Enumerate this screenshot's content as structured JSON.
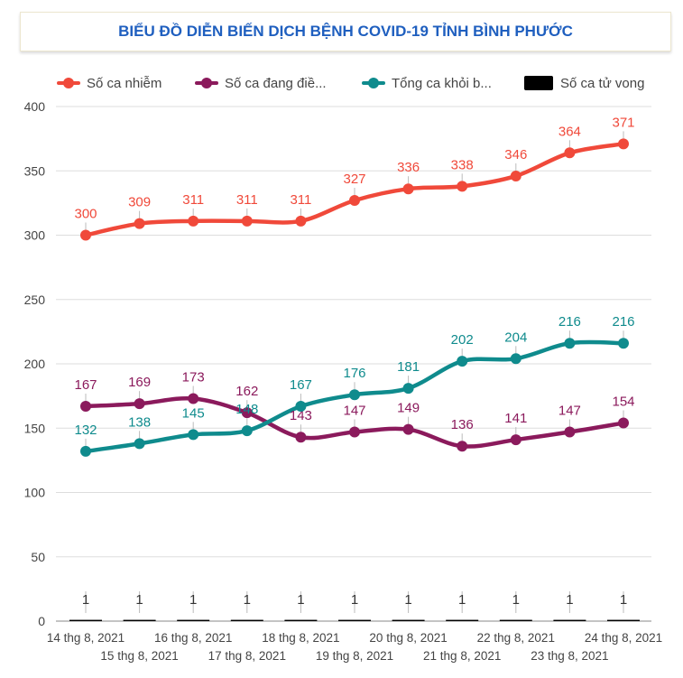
{
  "chart_data": {
    "type": "line",
    "title": "BIỂU ĐỒ DIỄN BIẾN DỊCH BỆNH COVID-19 TỈNH BÌNH PHƯỚC",
    "xlabel": "",
    "ylabel": "",
    "ylim": [
      0,
      400
    ],
    "yticks": [
      "0",
      "50",
      "100",
      "150",
      "200",
      "250",
      "300",
      "350",
      "400"
    ],
    "categories": [
      "14 thg 8, 2021",
      "15 thg 8, 2021",
      "16 thg 8, 2021",
      "17 thg 8, 2021",
      "18 thg 8, 2021",
      "19 thg 8, 2021",
      "20 thg 8, 2021",
      "21 thg 8, 2021",
      "22 thg 8, 2021",
      "23 thg 8, 2021",
      "24 thg 8, 2021"
    ],
    "series": [
      {
        "name": "Số ca nhiễm",
        "legend_label": "Số ca nhiễm",
        "color": "#f0493a",
        "kind": "line",
        "values": [
          300,
          309,
          311,
          311,
          311,
          327,
          336,
          338,
          346,
          364,
          371
        ]
      },
      {
        "name": "Số ca đang điều trị",
        "legend_label": "Số ca đang điề...",
        "color": "#8b1a5c",
        "kind": "line",
        "values": [
          167,
          169,
          173,
          162,
          143,
          147,
          149,
          136,
          141,
          147,
          154
        ]
      },
      {
        "name": "Tổng ca khỏi bệnh",
        "legend_label": "Tổng ca khỏi b...",
        "color": "#0f8b8d",
        "kind": "line",
        "values": [
          132,
          138,
          145,
          148,
          167,
          176,
          181,
          202,
          204,
          216,
          216
        ]
      },
      {
        "name": "Số ca tử vong",
        "legend_label": "Số ca tử vong",
        "color": "#000000",
        "kind": "bar",
        "values": [
          1,
          1,
          1,
          1,
          1,
          1,
          1,
          1,
          1,
          1,
          1
        ]
      }
    ]
  }
}
